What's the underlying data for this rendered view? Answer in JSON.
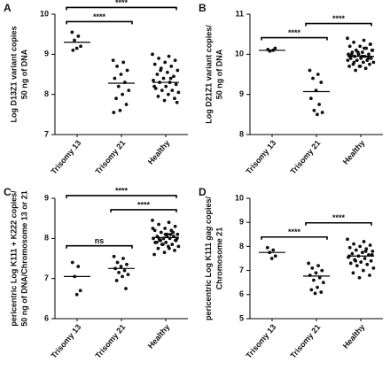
{
  "chart_data": [
    {
      "type": "strip",
      "panel_label": "A",
      "ylabel": [
        "Log D13Z1 variant copies",
        "50 ng of DNA"
      ],
      "categories": [
        "Trisomy 13",
        "Trisomy 21",
        "Healthy"
      ],
      "points": [
        [
          9.55,
          9.45,
          9.35,
          9.2,
          9.15,
          9.1
        ],
        [
          8.85,
          8.8,
          8.7,
          8.6,
          8.5,
          8.4,
          8.3,
          8.2,
          8.1,
          8.0,
          7.9,
          7.75,
          7.6,
          7.55
        ],
        [
          9.0,
          8.95,
          8.9,
          8.85,
          8.8,
          8.75,
          8.7,
          8.65,
          8.6,
          8.55,
          8.5,
          8.45,
          8.4,
          8.35,
          8.3,
          8.3,
          8.25,
          8.2,
          8.15,
          8.1,
          8.1,
          8.05,
          8.0,
          7.95,
          7.9,
          7.85,
          8.2,
          8.4,
          8.6,
          7.8
        ]
      ],
      "means": [
        9.3,
        8.28,
        8.3
      ],
      "ylim": [
        7,
        10
      ],
      "yticks": [
        7,
        8,
        9,
        10
      ],
      "comparisons": [
        {
          "between": [
            "Trisomy 13",
            "Trisomy 21"
          ],
          "label": "****"
        },
        {
          "between": [
            "Trisomy 13",
            "Healthy"
          ],
          "label": "****"
        }
      ],
      "color": "#111111"
    },
    {
      "type": "strip",
      "panel_label": "B",
      "ylabel": [
        "Log D21Z1 variant copies/",
        "50 ng of DNA"
      ],
      "categories": [
        "Trisomy 13",
        "Trisomy 21",
        "Healthy"
      ],
      "points": [
        [
          10.12,
          10.1,
          10.08,
          10.15
        ],
        [
          9.6,
          9.5,
          9.4,
          9.3,
          9.1,
          8.9,
          8.75,
          8.6,
          8.55,
          8.5
        ],
        [
          10.4,
          10.35,
          10.3,
          10.25,
          10.2,
          10.2,
          10.15,
          10.1,
          10.1,
          10.05,
          10.05,
          10.0,
          10.0,
          10.0,
          9.95,
          9.95,
          9.9,
          9.9,
          9.9,
          9.85,
          9.85,
          9.8,
          9.8,
          9.75,
          9.75,
          9.7,
          9.7,
          9.65,
          9.6,
          10.1,
          9.95,
          10.0,
          9.9,
          10.05,
          9.85,
          10.15,
          9.8,
          10.25,
          9.7,
          9.95
        ]
      ],
      "means": [
        10.1,
        9.07,
        9.95
      ],
      "ylim": [
        8,
        11
      ],
      "yticks": [
        8,
        9,
        10,
        11
      ],
      "comparisons": [
        {
          "between": [
            "Trisomy 13",
            "Trisomy 21"
          ],
          "label": "****"
        },
        {
          "between": [
            "Trisomy 21",
            "Healthy"
          ],
          "label": "****"
        }
      ],
      "color": "#111111"
    },
    {
      "type": "strip",
      "panel_label": "C",
      "ylabel": [
        "pericentric Log K111 + K222 copies/",
        "50 ng of DNA/Chromosome 13 or 21"
      ],
      "categories": [
        "Trisomy 13",
        "Trisomy 21",
        "Healthy"
      ],
      "points": [
        [
          7.4,
          7.3,
          7.05,
          6.7,
          6.6
        ],
        [
          7.55,
          7.5,
          7.4,
          7.35,
          7.3,
          7.25,
          7.2,
          7.15,
          7.1,
          7.05,
          6.95,
          6.75
        ],
        [
          8.45,
          8.4,
          8.35,
          8.3,
          8.25,
          8.2,
          8.2,
          8.15,
          8.1,
          8.1,
          8.05,
          8.05,
          8.0,
          8.0,
          8.0,
          7.95,
          7.95,
          7.9,
          7.9,
          7.85,
          7.85,
          7.8,
          7.8,
          7.75,
          7.7,
          7.65,
          7.6,
          8.1,
          7.95,
          8.0,
          8.05,
          7.9,
          8.15,
          7.85,
          8.25,
          7.75,
          8.0,
          7.95,
          8.1,
          7.9
        ]
      ],
      "means": [
        7.05,
        7.25,
        8.02
      ],
      "ylim": [
        6,
        9
      ],
      "yticks": [
        6,
        7,
        8,
        9
      ],
      "comparisons": [
        {
          "between": [
            "Trisomy 13",
            "Trisomy 21"
          ],
          "label": "ns"
        },
        {
          "between": [
            "Trisomy 21",
            "Healthy"
          ],
          "label": "****"
        },
        {
          "between": [
            "Trisomy 13",
            "Healthy"
          ],
          "label": "****"
        }
      ],
      "color": "#111111"
    },
    {
      "type": "strip",
      "panel_label": "D",
      "ylabel": [
        "pericentric Log K111 gag copies/",
        "Chromosome 21"
      ],
      "ylabel_italic": "gag",
      "categories": [
        "Trisomy 13",
        "Trisomy 21",
        "Healthy"
      ],
      "points": [
        [
          7.95,
          7.85,
          7.75,
          7.6,
          7.5
        ],
        [
          7.3,
          7.2,
          7.1,
          7.0,
          6.9,
          6.8,
          6.7,
          6.6,
          6.5,
          6.3,
          6.2,
          6.1,
          6.05
        ],
        [
          8.3,
          8.2,
          8.1,
          8.05,
          8.0,
          7.95,
          7.9,
          7.85,
          7.8,
          7.75,
          7.7,
          7.65,
          7.6,
          7.55,
          7.5,
          7.45,
          7.4,
          7.35,
          7.3,
          7.25,
          7.2,
          7.1,
          7.0,
          6.9,
          6.8,
          6.7,
          7.6,
          7.8,
          7.4,
          7.65
        ]
      ],
      "means": [
        7.75,
        6.77,
        7.6
      ],
      "ylim": [
        5,
        10
      ],
      "yticks": [
        5,
        6,
        7,
        8,
        9,
        10
      ],
      "comparisons": [
        {
          "between": [
            "Trisomy 13",
            "Trisomy 21"
          ],
          "label": "****"
        },
        {
          "between": [
            "Trisomy 21",
            "Healthy"
          ],
          "label": "****"
        }
      ],
      "color": "#111111"
    }
  ]
}
